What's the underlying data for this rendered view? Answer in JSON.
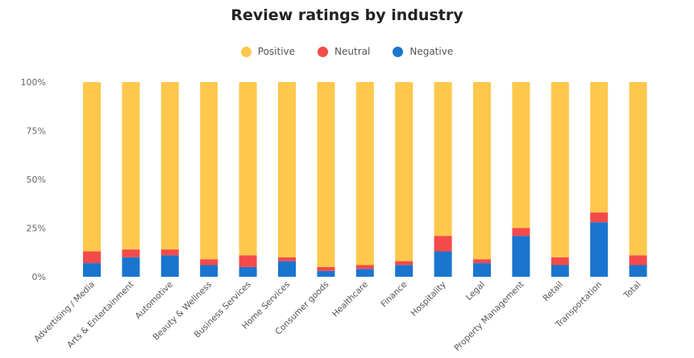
{
  "chart_data": {
    "type": "bar",
    "stacked": true,
    "percent": true,
    "title": "Review ratings by industry",
    "legend_position": "top",
    "grid": false,
    "ylim": [
      0,
      100
    ],
    "yticks": [
      "0%",
      "25%",
      "50%",
      "75%",
      "100%"
    ],
    "categories": [
      "Advertising / Media",
      "Arts & Entertainment",
      "Automotive",
      "Beauty & Wellness",
      "Business Services",
      "Home Services",
      "Consumer goods",
      "Healthcare",
      "Finance",
      "Hospitality",
      "Legal",
      "Property Management",
      "Retail",
      "Transportation",
      "Total"
    ],
    "series": [
      {
        "name": "Negative",
        "color": "#1a75cf",
        "values": [
          7,
          10,
          11,
          6,
          5,
          8,
          3,
          4,
          6,
          13,
          7,
          21,
          6,
          28,
          6
        ]
      },
      {
        "name": "Neutral",
        "color": "#f44a4a",
        "values": [
          6,
          4,
          3,
          3,
          6,
          2,
          2,
          2,
          2,
          8,
          2,
          4,
          4,
          5,
          5
        ]
      },
      {
        "name": "Positive",
        "color": "#fec84d",
        "values": [
          87,
          86,
          86,
          91,
          89,
          90,
          95,
          94,
          92,
          79,
          91,
          75,
          90,
          67,
          89
        ]
      }
    ],
    "legend_order": [
      "Positive",
      "Neutral",
      "Negative"
    ]
  }
}
